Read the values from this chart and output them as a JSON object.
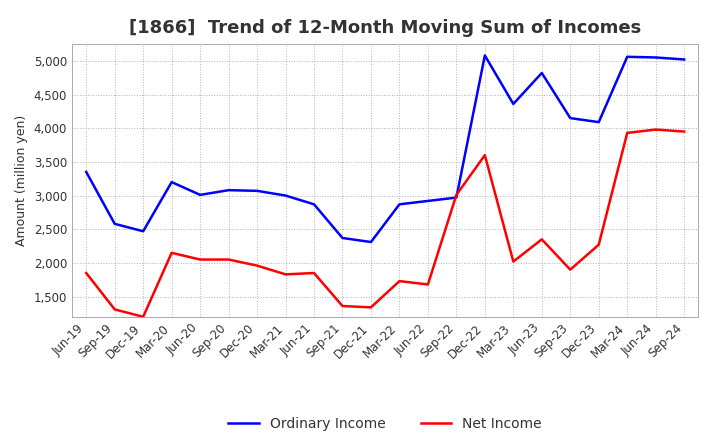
{
  "title": "[1866]  Trend of 12-Month Moving Sum of Incomes",
  "ylabel": "Amount (million yen)",
  "x_labels": [
    "Jun-19",
    "Sep-19",
    "Dec-19",
    "Mar-20",
    "Jun-20",
    "Sep-20",
    "Dec-20",
    "Mar-21",
    "Jun-21",
    "Sep-21",
    "Dec-21",
    "Mar-22",
    "Jun-22",
    "Sep-22",
    "Dec-22",
    "Mar-23",
    "Jun-23",
    "Sep-23",
    "Dec-23",
    "Mar-24",
    "Jun-24",
    "Sep-24"
  ],
  "ordinary_income": [
    3350,
    2580,
    2470,
    3200,
    3010,
    3080,
    3070,
    3000,
    2870,
    2370,
    2310,
    2870,
    2920,
    2970,
    5080,
    4360,
    4820,
    4150,
    4090,
    5060,
    5050,
    5020
  ],
  "net_income": [
    1850,
    1310,
    1200,
    2150,
    2050,
    2050,
    1960,
    1830,
    1850,
    1360,
    1340,
    1730,
    1680,
    3010,
    3600,
    2020,
    2350,
    1900,
    2270,
    3930,
    3980,
    3950
  ],
  "ordinary_color": "#0000ff",
  "net_color": "#ff0000",
  "ylim_min": 1200,
  "ylim_max": 5250,
  "yticks": [
    1500,
    2000,
    2500,
    3000,
    3500,
    4000,
    4500,
    5000
  ],
  "background_color": "#ffffff",
  "grid_color": "#aaaaaa",
  "title_fontsize": 13,
  "title_color": "#333333",
  "ylabel_fontsize": 9,
  "tick_fontsize": 8.5,
  "legend_fontsize": 10
}
